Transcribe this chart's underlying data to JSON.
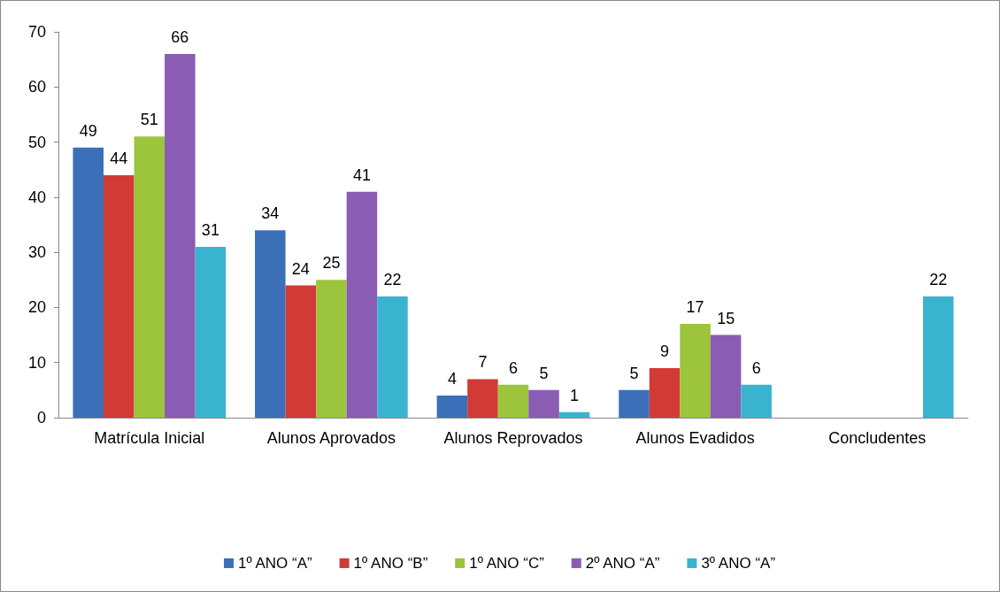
{
  "chart_data": {
    "type": "bar",
    "categories": [
      "Matrícula Inicial",
      "Alunos Aprovados",
      "Alunos Reprovados",
      "Alunos Evadidos",
      "Concludentes"
    ],
    "series": [
      {
        "name": "1º ANO “A”",
        "color": "#3b70b9",
        "values": [
          49,
          34,
          4,
          5,
          null
        ]
      },
      {
        "name": "1º ANO “B”",
        "color": "#d23a35",
        "values": [
          44,
          24,
          7,
          9,
          null
        ]
      },
      {
        "name": "1º ANO “C”",
        "color": "#9cc43c",
        "values": [
          51,
          25,
          6,
          17,
          null
        ]
      },
      {
        "name": "2º ANO “A”",
        "color": "#8a5cb4",
        "values": [
          66,
          41,
          5,
          15,
          null
        ]
      },
      {
        "name": "3º ANO “A”",
        "color": "#3ab3cf",
        "values": [
          31,
          22,
          1,
          6,
          22
        ]
      }
    ],
    "ylim": [
      0,
      70
    ],
    "yticks": [
      0,
      10,
      20,
      30,
      40,
      50,
      60,
      70
    ],
    "grid": false,
    "legend": "bottom",
    "data_labels": true
  }
}
